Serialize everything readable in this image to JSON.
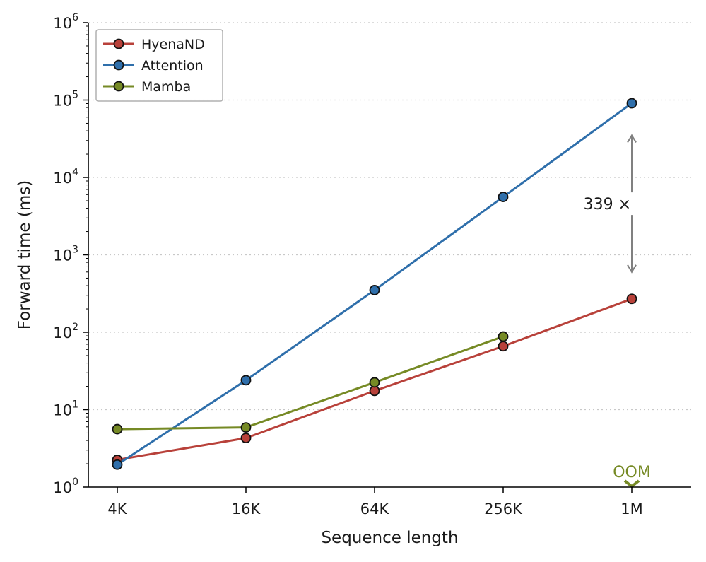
{
  "chart_data": {
    "type": "line",
    "xlabel": "Sequence length",
    "ylabel": "Forward time (ms)",
    "x_scale": "log2",
    "y_scale": "log",
    "categories": [
      "4K",
      "16K",
      "64K",
      "256K",
      "1M"
    ],
    "y_ticks": [
      {
        "exp": 0,
        "base": "10",
        "sup": "0"
      },
      {
        "exp": 1,
        "base": "10",
        "sup": "1"
      },
      {
        "exp": 2,
        "base": "10",
        "sup": "2"
      },
      {
        "exp": 3,
        "base": "10",
        "sup": "3"
      },
      {
        "exp": 4,
        "base": "10",
        "sup": "4"
      },
      {
        "exp": 5,
        "base": "10",
        "sup": "5"
      },
      {
        "exp": 6,
        "base": "10",
        "sup": "6"
      }
    ],
    "ylim": [
      1,
      1000000
    ],
    "grid": "y-dotted",
    "legend_position": "top-left",
    "series": [
      {
        "name": "HyenaND",
        "color": "#b8413a",
        "values": [
          2.25,
          4.3,
          17.5,
          66,
          270
        ]
      },
      {
        "name": "Attention",
        "color": "#2f6fab",
        "values": [
          1.95,
          24,
          350,
          5600,
          91000
        ]
      },
      {
        "name": "Mamba",
        "color": "#768a25",
        "values": [
          5.6,
          5.9,
          22.5,
          88,
          null
        ]
      }
    ],
    "annotations": [
      {
        "type": "ratio-arrow",
        "text": "339 ×",
        "category": "1M",
        "from": 600,
        "to": 35000,
        "color": "#808080"
      },
      {
        "type": "oom-marker",
        "text": "OOM",
        "category": "1M",
        "series": "Mamba",
        "color": "#768a25"
      }
    ]
  }
}
